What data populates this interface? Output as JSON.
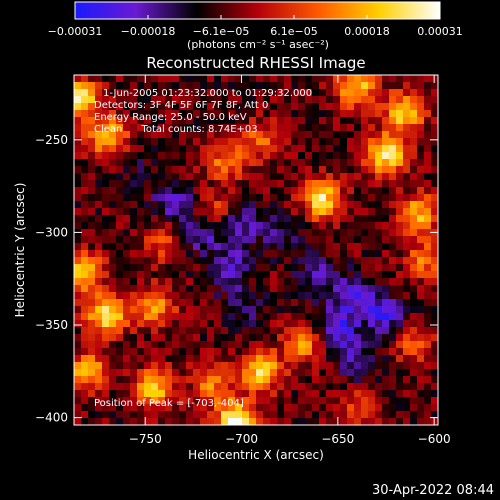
{
  "chart_data": {
    "type": "heatmap",
    "title": "Reconstructed RHESSI Image",
    "xlabel": "Heliocentric X (arcsec)",
    "ylabel": "Heliocentric Y (arcsec)",
    "xlim": [
      -787,
      -598
    ],
    "ylim": [
      -404,
      -215
    ],
    "xticks": [
      -750,
      -700,
      -650,
      -600
    ],
    "yticks": [
      -250,
      -300,
      -350,
      -400
    ],
    "xtick_labels": [
      "−750",
      "−700",
      "−650",
      "−600"
    ],
    "ytick_labels": [
      "−250",
      "−300",
      "−350",
      "−400"
    ],
    "colorbar": {
      "range": [
        -0.00031,
        0.00031
      ],
      "tick_labels": [
        "−0.00031",
        "−0.00018",
        "−6.1e−05",
        "6.1e−05",
        "0.00018",
        "0.00031"
      ],
      "unit_label": "(photons cm⁻² s⁻¹ asec⁻²)",
      "colors": [
        "#1a1aff",
        "#6a1ad2",
        "#000000",
        "#b4000a",
        "#ff5a00",
        "#ffd000",
        "#ffffff"
      ]
    },
    "annotations": [
      "1-Jun-2005 01:23:32.000 to 01:29:32.000",
      "Detectors: 3F 4F 5F 6F 7F 8F, Att 0",
      "Energy Range: 25.0 - 50.0 keV",
      "Clean      Total counts: 8.74E+03",
      "Position of Peak = [-703,-404]"
    ],
    "hotspots": [
      {
        "x": -785,
        "y": -228,
        "v": 0.00028
      },
      {
        "x": -770,
        "y": -248,
        "v": 0.0002
      },
      {
        "x": -708,
        "y": -262,
        "v": 0.00012
      },
      {
        "x": -690,
        "y": -250,
        "v": 9e-05
      },
      {
        "x": -640,
        "y": -222,
        "v": 0.0002
      },
      {
        "x": -615,
        "y": -235,
        "v": 0.00022
      },
      {
        "x": -625,
        "y": -258,
        "v": 0.00026
      },
      {
        "x": -658,
        "y": -282,
        "v": 0.00024
      },
      {
        "x": -608,
        "y": -290,
        "v": 0.00018
      },
      {
        "x": -782,
        "y": -322,
        "v": 0.0002
      },
      {
        "x": -770,
        "y": -345,
        "v": 0.00024
      },
      {
        "x": -745,
        "y": -340,
        "v": 0.00016
      },
      {
        "x": -780,
        "y": -375,
        "v": 0.00018
      },
      {
        "x": -745,
        "y": -384,
        "v": 0.0002
      },
      {
        "x": -715,
        "y": -382,
        "v": 0.00012
      },
      {
        "x": -703,
        "y": -402,
        "v": 0.00031
      },
      {
        "x": -690,
        "y": -375,
        "v": 0.00022
      },
      {
        "x": -668,
        "y": -360,
        "v": 0.00014
      },
      {
        "x": -605,
        "y": -315,
        "v": 0.00012
      },
      {
        "x": -715,
        "y": -290,
        "v": 0.0001
      },
      {
        "x": -740,
        "y": -305,
        "v": 8e-05
      },
      {
        "x": -610,
        "y": -360,
        "v": 0.0001
      },
      {
        "x": -640,
        "y": -395,
        "v": 8e-05
      }
    ],
    "coldspots": [
      {
        "x": -735,
        "y": -285,
        "v": -0.00022
      },
      {
        "x": -720,
        "y": -300,
        "v": -0.00024
      },
      {
        "x": -700,
        "y": -295,
        "v": -0.0002
      },
      {
        "x": -680,
        "y": -300,
        "v": -0.00016
      },
      {
        "x": -660,
        "y": -325,
        "v": -0.0002
      },
      {
        "x": -640,
        "y": -335,
        "v": -0.00022
      },
      {
        "x": -625,
        "y": -345,
        "v": -0.00024
      },
      {
        "x": -650,
        "y": -352,
        "v": -0.00026
      },
      {
        "x": -700,
        "y": -340,
        "v": -0.00016
      },
      {
        "x": -705,
        "y": -318,
        "v": -0.00018
      },
      {
        "x": -640,
        "y": -370,
        "v": -0.00018
      },
      {
        "x": -755,
        "y": -265,
        "v": -0.0001
      }
    ],
    "background_level": -6e-05
  },
  "footer": {
    "timestamp": "30-Apr-2022 08:44"
  }
}
